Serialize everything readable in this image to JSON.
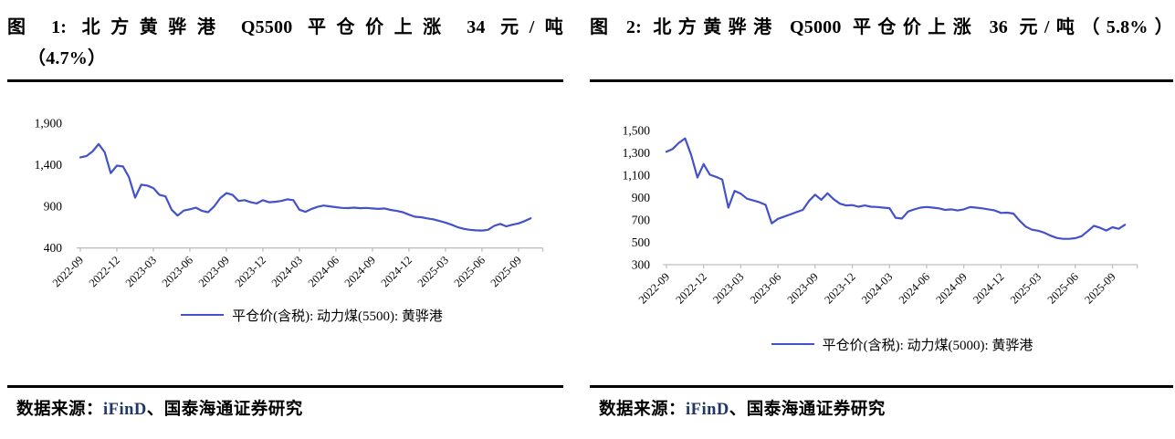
{
  "page": {
    "background": "#FFFFFF"
  },
  "colors": {
    "line": "#4352C8",
    "axis": "#BFBFBF",
    "text": "#000000",
    "brand_ifind": "#1F3864",
    "rule": "#000000"
  },
  "panels": [
    {
      "figure_label": "图 1",
      "title_line1": "图 1: 北方黄骅港 Q5500 平仓价上涨 34 元/吨",
      "title_line2": "（4.7%）",
      "legend": "平仓价(含税): 动力煤(5500): 黄骅港",
      "source": {
        "prefix": "数据来源：",
        "brand": "iFinD",
        "suffix": "、国泰海通证券研究"
      }
    },
    {
      "figure_label": "图 2",
      "title_line1": "图 2: 北方黄骅港 Q5000 平仓价上涨 36 元/吨（5.8%）",
      "title_line2": "",
      "legend": "平仓价(含税): 动力煤(5000): 黄骅港",
      "source": {
        "prefix": "数据来源：",
        "brand": "iFinD",
        "suffix": "、国泰海通证券研究"
      }
    }
  ],
  "chart_data": [
    {
      "type": "line",
      "title": "北方黄骅港 Q5500 平仓价上涨 34 元/吨（4.7%）",
      "xlabel": "",
      "ylabel": "",
      "ylim": [
        400,
        1900
      ],
      "yticks": [
        400,
        900,
        1400,
        1900
      ],
      "xticks": [
        "2022-09",
        "2022-12",
        "2023-03",
        "2023-06",
        "2023-09",
        "2023-12",
        "2024-03",
        "2024-06",
        "2024-09",
        "2024-12",
        "2025-03",
        "2025-06",
        "2025-09"
      ],
      "x_note": "points sampled every 0.5 month starting 2022-09, values in yuan/ton (estimated from plot)",
      "x_step": 0.5,
      "grid": false,
      "legend_position": "bottom",
      "series": [
        {
          "name": "平仓价(含税): 动力煤(5500): 黄骅港",
          "values": [
            1490,
            1505,
            1560,
            1650,
            1550,
            1300,
            1390,
            1380,
            1250,
            1005,
            1160,
            1150,
            1120,
            1040,
            1020,
            860,
            790,
            850,
            865,
            885,
            845,
            830,
            900,
            1000,
            1060,
            1040,
            965,
            975,
            950,
            935,
            975,
            950,
            955,
            965,
            985,
            975,
            860,
            835,
            870,
            895,
            910,
            900,
            890,
            882,
            880,
            885,
            878,
            882,
            875,
            870,
            875,
            858,
            845,
            830,
            800,
            775,
            770,
            755,
            745,
            725,
            705,
            680,
            650,
            630,
            618,
            612,
            610,
            618,
            665,
            690,
            660,
            680,
            695,
            723,
            757
          ]
        }
      ]
    },
    {
      "type": "line",
      "title": "北方黄骅港 Q5000 平仓价上涨 36 元/吨（5.8%）",
      "xlabel": "",
      "ylabel": "",
      "ylim": [
        300,
        1500
      ],
      "yticks": [
        300,
        500,
        700,
        900,
        1100,
        1300,
        1500
      ],
      "xticks": [
        "2022-09",
        "2022-12",
        "2023-03",
        "2023-06",
        "2023-09",
        "2023-12",
        "2024-03",
        "2024-06",
        "2024-09",
        "2024-12",
        "2025-03",
        "2025-06",
        "2025-09"
      ],
      "x_note": "points sampled every 0.5 month starting 2022-09, values in yuan/ton (estimated from plot)",
      "x_step": 0.5,
      "grid": false,
      "legend_position": "bottom",
      "series": [
        {
          "name": "平仓价(含税): 动力煤(5000): 黄骅港",
          "values": [
            1310,
            1335,
            1390,
            1430,
            1280,
            1080,
            1200,
            1105,
            1085,
            1062,
            810,
            960,
            935,
            890,
            875,
            858,
            835,
            670,
            710,
            730,
            750,
            770,
            790,
            870,
            925,
            880,
            938,
            885,
            845,
            830,
            833,
            818,
            830,
            818,
            816,
            810,
            805,
            720,
            712,
            775,
            795,
            810,
            816,
            810,
            804,
            790,
            795,
            785,
            795,
            815,
            810,
            804,
            795,
            785,
            763,
            765,
            757,
            694,
            640,
            613,
            604,
            586,
            560,
            539,
            531,
            531,
            537,
            555,
            600,
            648,
            630,
            605,
            635,
            621,
            657
          ]
        }
      ]
    }
  ]
}
